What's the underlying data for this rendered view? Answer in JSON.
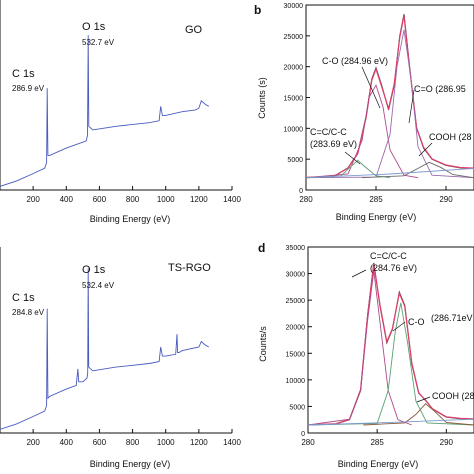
{
  "chart_data": [
    {
      "id": "a",
      "panel_label": "",
      "type": "line",
      "sample_label": "GO",
      "xlabel": "Binding Energy (eV)",
      "ylabel": "",
      "xlim": [
        0,
        1400
      ],
      "x_ticks": [
        "200",
        "400",
        "600",
        "800",
        "1000",
        "1200",
        "1400"
      ],
      "color": "#4a5bbf",
      "peak_labels": [
        {
          "name": "O 1s",
          "energy": "532.7 eV"
        },
        {
          "name": "C 1s",
          "energy": "286.9 eV"
        }
      ],
      "series": [
        {
          "x": [
            0,
            100,
            200,
            270,
            281,
            285,
            289,
            300,
            400,
            520,
            528,
            532,
            536,
            560,
            700,
            900,
            960,
            970,
            980,
            1000,
            1100,
            1180,
            1200,
            1215,
            1240,
            1260
          ],
          "y": [
            0.02,
            0.05,
            0.09,
            0.12,
            0.15,
            0.56,
            0.19,
            0.19,
            0.23,
            0.27,
            0.3,
            0.85,
            0.35,
            0.33,
            0.35,
            0.37,
            0.38,
            0.46,
            0.41,
            0.41,
            0.43,
            0.44,
            0.45,
            0.49,
            0.47,
            0.46
          ]
        }
      ]
    },
    {
      "id": "b",
      "panel_label": "b",
      "type": "line",
      "xlabel": "Binding Energy (eV)",
      "ylabel": "Counts (s)",
      "xlim": [
        280,
        292
      ],
      "ylim": [
        0,
        30000
      ],
      "x_ticks": [
        "280",
        "285",
        "290"
      ],
      "y_ticks": [
        "0",
        "5000",
        "10000",
        "15000",
        "20000",
        "25000",
        "30000"
      ],
      "annotations": [
        "C-O (284.96 eV)",
        "C=O (286.95",
        "COOH (28",
        "C=C/C-C",
        "(283.69 eV)"
      ],
      "series": [
        {
          "style": "raw",
          "color": "#333333",
          "x": [
            280,
            282,
            283,
            283.7,
            284.3,
            284.7,
            285.0,
            285.4,
            285.9,
            286.3,
            286.7,
            287.0,
            287.4,
            287.9,
            288.4,
            289.0,
            290,
            291,
            292
          ],
          "y": [
            2000,
            2200,
            3600,
            6000,
            12000,
            18000,
            19800,
            17000,
            13000,
            17000,
            25000,
            28500,
            20000,
            10000,
            6800,
            5000,
            4000,
            3600,
            3500
          ]
        },
        {
          "style": "envelope",
          "color": "#e0406a",
          "x": [
            280,
            282,
            283,
            283.7,
            284.3,
            284.7,
            285.0,
            285.4,
            285.9,
            286.3,
            286.7,
            287.0,
            287.4,
            287.9,
            288.4,
            289.0,
            290,
            291,
            292
          ],
          "y": [
            2050,
            2250,
            3550,
            5900,
            11800,
            17800,
            19600,
            16800,
            13200,
            17200,
            24800,
            28300,
            19800,
            10100,
            6900,
            5050,
            4050,
            3650,
            3550
          ]
        },
        {
          "style": "component",
          "color": "#b04a8a",
          "x": [
            280,
            283,
            284,
            284.5,
            285.0,
            285.5,
            286,
            287,
            288
          ],
          "y": [
            2000,
            2600,
            8000,
            15000,
            17000,
            13500,
            6500,
            2400,
            2000
          ]
        },
        {
          "style": "component",
          "color": "#9a6ab0",
          "x": [
            280,
            285,
            286,
            286.5,
            287.0,
            287.5,
            288,
            289,
            292
          ],
          "y": [
            2000,
            2100,
            9000,
            20000,
            26000,
            18000,
            7000,
            2400,
            2000
          ]
        },
        {
          "style": "component",
          "color": "#5aa070",
          "x": [
            280,
            282.5,
            283.2,
            283.7,
            284.2,
            285,
            286
          ],
          "y": [
            2000,
            2300,
            3800,
            4800,
            3800,
            2300,
            2000
          ]
        },
        {
          "style": "component",
          "color": "#6a6a6a",
          "x": [
            284,
            287,
            288,
            288.8,
            289.6,
            290.5,
            292
          ],
          "y": [
            2000,
            2300,
            3500,
            4500,
            3700,
            2500,
            2000
          ]
        },
        {
          "style": "baseline",
          "color": "#7a9ad0",
          "x": [
            280,
            286,
            292
          ],
          "y": [
            2000,
            2600,
            3500
          ]
        }
      ]
    },
    {
      "id": "c",
      "panel_label": "",
      "type": "line",
      "sample_label": "TS-RGO",
      "xlabel": "Binding Energy (eV)",
      "ylabel": "",
      "xlim": [
        0,
        1400
      ],
      "x_ticks": [
        "200",
        "400",
        "600",
        "800",
        "1000",
        "1200",
        "1400"
      ],
      "color": "#4a5bbf",
      "peak_labels": [
        {
          "name": "O 1s",
          "energy": "532.4 eV"
        },
        {
          "name": "C 1s",
          "energy": "284.8 eV"
        }
      ],
      "series": [
        {
          "x": [
            0,
            100,
            200,
            270,
            281,
            285,
            289,
            300,
            400,
            460,
            470,
            475,
            500,
            525,
            529,
            532,
            535,
            560,
            700,
            900,
            960,
            970,
            980,
            1000,
            1060,
            1068,
            1072,
            1080,
            1100,
            1200,
            1215,
            1240,
            1260
          ],
          "y": [
            0.02,
            0.05,
            0.09,
            0.12,
            0.15,
            0.68,
            0.19,
            0.2,
            0.24,
            0.26,
            0.35,
            0.28,
            0.28,
            0.3,
            0.33,
            0.9,
            0.36,
            0.34,
            0.36,
            0.38,
            0.39,
            0.47,
            0.42,
            0.42,
            0.43,
            0.54,
            0.44,
            0.44,
            0.45,
            0.47,
            0.5,
            0.48,
            0.47
          ]
        }
      ]
    },
    {
      "id": "d",
      "panel_label": "d",
      "type": "line",
      "xlabel": "Binding Energy (eV)",
      "ylabel": "Counts/s",
      "xlim": [
        280,
        292
      ],
      "ylim": [
        0,
        35000
      ],
      "x_ticks": [
        "280",
        "285",
        "290"
      ],
      "y_ticks": [
        "0",
        "5000",
        "10000",
        "15000",
        "20000",
        "25000",
        "30000",
        "35000"
      ],
      "annotations": [
        "C=C/C-C",
        "(284.76 eV)",
        "C-O",
        "(286.71eV",
        "COOH (28"
      ],
      "series": [
        {
          "style": "raw",
          "color": "#333333",
          "x": [
            280,
            282,
            283,
            283.8,
            284.3,
            284.76,
            285.2,
            285.7,
            286.1,
            286.6,
            287.0,
            287.5,
            288.0,
            288.5,
            289.0,
            290,
            291,
            292
          ],
          "y": [
            1500,
            1700,
            2500,
            8000,
            22000,
            32000,
            24000,
            17000,
            19500,
            26500,
            24000,
            13000,
            7500,
            6200,
            4500,
            3000,
            2700,
            2600
          ]
        },
        {
          "style": "envelope",
          "color": "#e0406a",
          "x": [
            280,
            282,
            283,
            283.8,
            284.3,
            284.76,
            285.2,
            285.7,
            286.1,
            286.6,
            287.0,
            287.5,
            288.0,
            288.5,
            289.0,
            290,
            291,
            292
          ],
          "y": [
            1550,
            1750,
            2550,
            8200,
            21800,
            31800,
            24200,
            17200,
            19600,
            26300,
            23800,
            13200,
            7600,
            6100,
            4550,
            3050,
            2750,
            2650
          ]
        },
        {
          "style": "component",
          "color": "#b04a8a",
          "x": [
            280,
            283,
            283.8,
            284.3,
            284.76,
            285.2,
            285.8,
            286.5,
            287.5
          ],
          "y": [
            1500,
            2600,
            8000,
            21000,
            30500,
            21000,
            8000,
            2500,
            1500
          ]
        },
        {
          "style": "component",
          "color": "#5aa070",
          "x": [
            280,
            285,
            285.8,
            286.3,
            286.71,
            287.2,
            287.8,
            288.6,
            292
          ],
          "y": [
            1500,
            1800,
            8000,
            19000,
            24500,
            17000,
            6000,
            1900,
            1500
          ]
        },
        {
          "style": "component",
          "color": "#8a5a3a",
          "x": [
            284,
            287,
            287.8,
            288.5,
            289.1,
            290,
            292
          ],
          "y": [
            1500,
            1900,
            3500,
            5500,
            4200,
            2000,
            1500
          ]
        },
        {
          "style": "baseline",
          "color": "#7a9ad0",
          "x": [
            280,
            286,
            292
          ],
          "y": [
            1500,
            2000,
            2600
          ]
        }
      ]
    }
  ]
}
